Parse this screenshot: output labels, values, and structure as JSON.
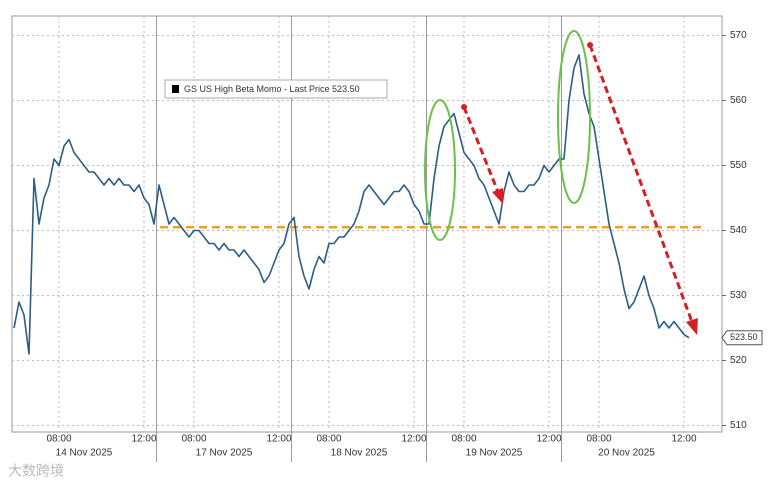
{
  "chart_data": {
    "type": "line",
    "legend": "GS US High Beta Momo - Last Price 523.50",
    "color": "#2b5d87",
    "ylim": [
      509,
      573
    ],
    "yticks": [
      510,
      520,
      530,
      540,
      550,
      560,
      570
    ],
    "grid": true,
    "reference_line": {
      "value": 540.5,
      "color": "#f0a020"
    },
    "last_price": {
      "value": 523.5,
      "label": "523.50"
    },
    "watermark": "大数跨境",
    "sessions": [
      {
        "label": "14 Nov 2025",
        "categories": [
          null,
          null,
          null,
          null,
          null,
          null,
          null,
          null,
          null,
          "08:00",
          null,
          null,
          null,
          null,
          null,
          null,
          null,
          null,
          null,
          null,
          null,
          null,
          null,
          null,
          null,
          null,
          "12:00",
          null,
          null
        ],
        "values": [
          525,
          529,
          527,
          521,
          548,
          541,
          545,
          547,
          551,
          550,
          553,
          554,
          552,
          551,
          550,
          549,
          549,
          548,
          547,
          548,
          547,
          548,
          547,
          547,
          546,
          547,
          545,
          544,
          541
        ]
      },
      {
        "label": "17 Nov 2025",
        "categories": [
          null,
          null,
          null,
          null,
          null,
          null,
          null,
          "08:00",
          null,
          null,
          null,
          null,
          null,
          null,
          null,
          null,
          null,
          null,
          null,
          null,
          null,
          null,
          null,
          null,
          "12:00",
          null,
          null
        ],
        "values": [
          547,
          544,
          541,
          542,
          541,
          540,
          539,
          540,
          540,
          539,
          538,
          538,
          537,
          538,
          537,
          537,
          536,
          537,
          536,
          535,
          534,
          532,
          533,
          535,
          537,
          538,
          541
        ]
      },
      {
        "label": "18 Nov 2025",
        "categories": [
          null,
          null,
          null,
          null,
          null,
          null,
          null,
          "08:00",
          null,
          null,
          null,
          null,
          null,
          null,
          null,
          null,
          null,
          null,
          null,
          null,
          null,
          null,
          null,
          null,
          "12:00",
          null,
          null
        ],
        "values": [
          542,
          536,
          533,
          531,
          534,
          536,
          535,
          538,
          538,
          539,
          539,
          540,
          541,
          543,
          546,
          547,
          546,
          545,
          544,
          545,
          546,
          546,
          547,
          546,
          544,
          543,
          541
        ]
      },
      {
        "label": "19 Nov 2025",
        "categories": [
          null,
          null,
          null,
          null,
          null,
          null,
          null,
          "08:00",
          null,
          null,
          null,
          null,
          null,
          null,
          null,
          null,
          null,
          null,
          null,
          null,
          null,
          null,
          null,
          null,
          "12:00",
          null,
          null
        ],
        "values": [
          541,
          548,
          553,
          556,
          557,
          558,
          555,
          552,
          551,
          550,
          548,
          547,
          545,
          543,
          541,
          546,
          549,
          547,
          546,
          546,
          547,
          547,
          548,
          550,
          549,
          550,
          551
        ]
      },
      {
        "label": "20 Nov 2025",
        "categories": [
          null,
          null,
          null,
          null,
          null,
          null,
          null,
          "08:00",
          null,
          null,
          null,
          null,
          null,
          null,
          null,
          null,
          null,
          null,
          null,
          null,
          null,
          null,
          null,
          null,
          "12:00",
          null
        ],
        "values": [
          551,
          560,
          565,
          567,
          561,
          558,
          556,
          551,
          546,
          541,
          538,
          535,
          531,
          528,
          529,
          531,
          533,
          530,
          528,
          525,
          526,
          525,
          526,
          525,
          524,
          523.5
        ]
      }
    ]
  }
}
